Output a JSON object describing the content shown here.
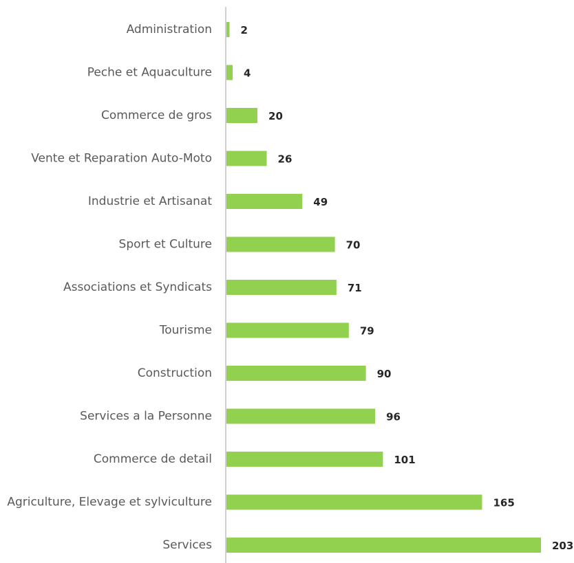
{
  "chart_data": {
    "type": "bar",
    "orientation": "horizontal",
    "title": "",
    "xlabel": "",
    "ylabel": "",
    "categories": [
      "Administration",
      "Peche et Aquaculture",
      "Commerce de gros",
      "Vente et Reparation Auto-Moto",
      "Industrie et Artisanat",
      "Sport et Culture",
      "Associations et Syndicats",
      "Tourisme",
      "Construction",
      "Services a la Personne",
      "Commerce de detail",
      "Agriculture, Elevage et sylviculture",
      "Services"
    ],
    "values": [
      2,
      4,
      20,
      26,
      49,
      70,
      71,
      79,
      90,
      96,
      101,
      165,
      203
    ],
    "xlim": [
      0,
      203
    ],
    "grid": false,
    "legend": "none",
    "bar_color": "#92d050",
    "axis_color": "#bfbfbf"
  }
}
